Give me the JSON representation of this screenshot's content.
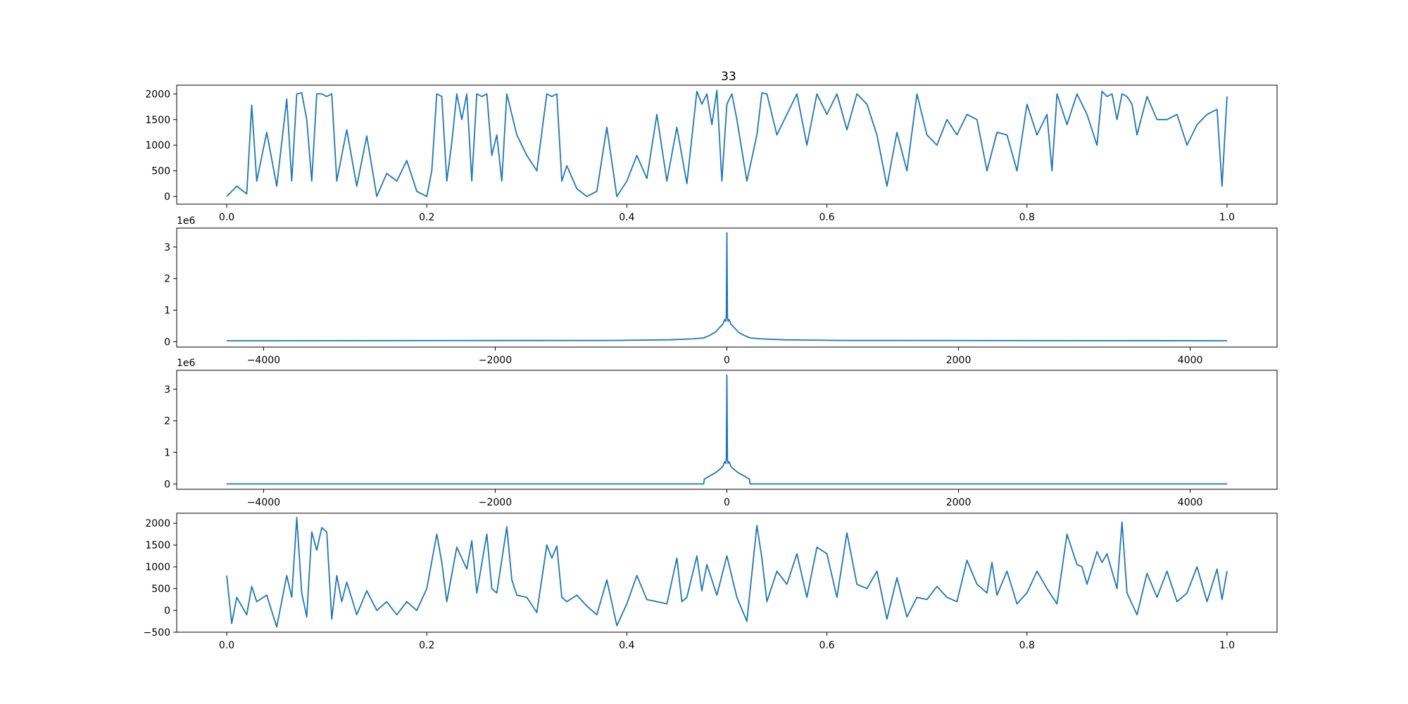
{
  "figure": {
    "title": "33",
    "line_color": "#1f77b4",
    "background": "#ffffff"
  },
  "chart_data": [
    {
      "type": "line",
      "title": "33",
      "xlabel": "",
      "ylabel": "",
      "xlim": [
        -0.05,
        1.05
      ],
      "ylim": [
        -150,
        2170
      ],
      "xticks": [
        0.0,
        0.2,
        0.4,
        0.6,
        0.8,
        1.0
      ],
      "xtick_labels": [
        "0.0",
        "0.2",
        "0.4",
        "0.6",
        "0.8",
        "1.0"
      ],
      "yticks": [
        0,
        500,
        1000,
        1500,
        2000
      ],
      "ytick_labels": [
        "0",
        "500",
        "1000",
        "1500",
        "2000"
      ],
      "offset_label": "",
      "grid": false,
      "series": [
        {
          "x": [
            0.0,
            0.01,
            0.02,
            0.025,
            0.03,
            0.04,
            0.05,
            0.06,
            0.065,
            0.07,
            0.075,
            0.08,
            0.085,
            0.09,
            0.095,
            0.1,
            0.105,
            0.11,
            0.12,
            0.13,
            0.14,
            0.15,
            0.16,
            0.17,
            0.18,
            0.19,
            0.2,
            0.205,
            0.21,
            0.215,
            0.22,
            0.225,
            0.23,
            0.235,
            0.24,
            0.245,
            0.25,
            0.255,
            0.26,
            0.265,
            0.27,
            0.275,
            0.28,
            0.29,
            0.3,
            0.31,
            0.32,
            0.325,
            0.33,
            0.335,
            0.34,
            0.35,
            0.36,
            0.37,
            0.38,
            0.39,
            0.4,
            0.41,
            0.42,
            0.43,
            0.44,
            0.45,
            0.46,
            0.47,
            0.475,
            0.48,
            0.485,
            0.49,
            0.495,
            0.5,
            0.505,
            0.51,
            0.52,
            0.53,
            0.535,
            0.54,
            0.55,
            0.56,
            0.57,
            0.58,
            0.59,
            0.6,
            0.61,
            0.62,
            0.63,
            0.64,
            0.65,
            0.66,
            0.67,
            0.68,
            0.69,
            0.7,
            0.71,
            0.72,
            0.73,
            0.74,
            0.75,
            0.76,
            0.77,
            0.78,
            0.79,
            0.8,
            0.81,
            0.82,
            0.825,
            0.83,
            0.84,
            0.85,
            0.86,
            0.87,
            0.875,
            0.88,
            0.885,
            0.89,
            0.895,
            0.9,
            0.905,
            0.91,
            0.92,
            0.93,
            0.94,
            0.95,
            0.96,
            0.97,
            0.98,
            0.99,
            0.995,
            1.0
          ],
          "y": [
            0,
            200,
            50,
            1780,
            300,
            1250,
            200,
            1900,
            300,
            2000,
            2020,
            1500,
            300,
            2000,
            2000,
            1950,
            2000,
            300,
            1300,
            200,
            1180,
            0,
            450,
            300,
            700,
            100,
            0,
            500,
            2000,
            1950,
            300,
            1050,
            2000,
            1500,
            2000,
            300,
            2000,
            1950,
            2000,
            800,
            1200,
            300,
            2000,
            1200,
            800,
            500,
            2000,
            1950,
            2000,
            300,
            600,
            150,
            0,
            100,
            1350,
            0,
            300,
            800,
            350,
            1600,
            300,
            1350,
            250,
            2050,
            1800,
            2000,
            1400,
            2070,
            300,
            1800,
            2000,
            1500,
            300,
            1200,
            2020,
            2000,
            1200,
            1600,
            2000,
            1000,
            2000,
            1600,
            2000,
            1300,
            2000,
            1800,
            1200,
            200,
            1250,
            500,
            2000,
            1200,
            1000,
            1500,
            1200,
            1600,
            1500,
            500,
            1250,
            1200,
            500,
            1800,
            1200,
            1600,
            500,
            2000,
            1400,
            2000,
            1600,
            1000,
            2050,
            1950,
            2000,
            1500,
            2000,
            1950,
            1800,
            1200,
            1950,
            1500,
            1500,
            1600,
            1000,
            1400,
            1600,
            1700,
            200,
            1950
          ]
        }
      ]
    },
    {
      "type": "line",
      "title": "",
      "xlabel": "",
      "ylabel": "",
      "xlim": [
        -4750,
        4750
      ],
      "ylim": [
        -0.17,
        3.6
      ],
      "xticks": [
        -4000,
        -2000,
        0,
        2000,
        4000
      ],
      "xtick_labels": [
        "−4000",
        "−2000",
        "0",
        "2000",
        "4000"
      ],
      "yticks": [
        0,
        1,
        2,
        3
      ],
      "ytick_labels": [
        "0",
        "1",
        "2",
        "3"
      ],
      "offset_label": "1e6",
      "grid": false,
      "series": [
        {
          "x": [
            -4320,
            -1000,
            -500,
            -300,
            -200,
            -150,
            -100,
            -75,
            -50,
            -35,
            -20,
            -10,
            -5,
            0,
            5,
            10,
            20,
            35,
            50,
            75,
            100,
            150,
            200,
            300,
            500,
            1000,
            4320
          ],
          "y": [
            0.03,
            0.04,
            0.06,
            0.09,
            0.12,
            0.2,
            0.3,
            0.4,
            0.5,
            0.55,
            0.7,
            0.65,
            0.78,
            3.45,
            0.78,
            0.65,
            0.7,
            0.55,
            0.5,
            0.4,
            0.3,
            0.2,
            0.12,
            0.09,
            0.06,
            0.04,
            0.03
          ]
        }
      ]
    },
    {
      "type": "line",
      "title": "",
      "xlabel": "",
      "ylabel": "",
      "xlim": [
        -4750,
        4750
      ],
      "ylim": [
        -0.17,
        3.6
      ],
      "xticks": [
        -4000,
        -2000,
        0,
        2000,
        4000
      ],
      "xtick_labels": [
        "−4000",
        "−2000",
        "0",
        "2000",
        "4000"
      ],
      "yticks": [
        0,
        1,
        2,
        3
      ],
      "ytick_labels": [
        "0",
        "1",
        "2",
        "3"
      ],
      "offset_label": "1e6",
      "grid": false,
      "series": [
        {
          "x": [
            -4320,
            -200,
            -195,
            -150,
            -100,
            -75,
            -50,
            -35,
            -20,
            -10,
            -5,
            0,
            5,
            10,
            20,
            35,
            50,
            75,
            100,
            150,
            195,
            200,
            4320
          ],
          "y": [
            0.0,
            0.0,
            0.15,
            0.25,
            0.35,
            0.42,
            0.5,
            0.55,
            0.7,
            0.65,
            0.78,
            3.45,
            0.78,
            0.65,
            0.7,
            0.55,
            0.5,
            0.42,
            0.35,
            0.25,
            0.15,
            0.0,
            0.0
          ]
        }
      ]
    },
    {
      "type": "line",
      "title": "",
      "xlabel": "",
      "ylabel": "",
      "xlim": [
        -0.05,
        1.05
      ],
      "ylim": [
        -500,
        2230
      ],
      "xticks": [
        0.0,
        0.2,
        0.4,
        0.6,
        0.8,
        1.0
      ],
      "xtick_labels": [
        "0.0",
        "0.2",
        "0.4",
        "0.6",
        "0.8",
        "1.0"
      ],
      "yticks": [
        -500,
        0,
        500,
        1000,
        1500,
        2000
      ],
      "ytick_labels": [
        "−500",
        "0",
        "500",
        "1000",
        "1500",
        "2000"
      ],
      "offset_label": "",
      "grid": false,
      "series": [
        {
          "x": [
            0.0,
            0.005,
            0.01,
            0.02,
            0.025,
            0.03,
            0.04,
            0.05,
            0.06,
            0.065,
            0.07,
            0.075,
            0.08,
            0.085,
            0.09,
            0.095,
            0.1,
            0.105,
            0.11,
            0.115,
            0.12,
            0.13,
            0.14,
            0.15,
            0.16,
            0.17,
            0.18,
            0.19,
            0.2,
            0.21,
            0.215,
            0.22,
            0.23,
            0.24,
            0.245,
            0.25,
            0.26,
            0.265,
            0.27,
            0.28,
            0.285,
            0.29,
            0.3,
            0.31,
            0.32,
            0.325,
            0.33,
            0.335,
            0.34,
            0.35,
            0.36,
            0.37,
            0.38,
            0.39,
            0.4,
            0.41,
            0.42,
            0.43,
            0.44,
            0.45,
            0.455,
            0.46,
            0.47,
            0.475,
            0.48,
            0.49,
            0.5,
            0.51,
            0.52,
            0.53,
            0.535,
            0.54,
            0.55,
            0.56,
            0.57,
            0.58,
            0.59,
            0.6,
            0.61,
            0.62,
            0.63,
            0.64,
            0.65,
            0.66,
            0.67,
            0.68,
            0.69,
            0.7,
            0.71,
            0.72,
            0.73,
            0.74,
            0.75,
            0.76,
            0.765,
            0.77,
            0.78,
            0.79,
            0.8,
            0.81,
            0.82,
            0.83,
            0.84,
            0.85,
            0.855,
            0.86,
            0.87,
            0.875,
            0.88,
            0.89,
            0.895,
            0.9,
            0.91,
            0.92,
            0.93,
            0.94,
            0.95,
            0.96,
            0.97,
            0.98,
            0.99,
            0.995,
            1.0
          ],
          "y": [
            800,
            -300,
            300,
            -100,
            550,
            200,
            350,
            -380,
            800,
            300,
            2130,
            400,
            -150,
            1800,
            1380,
            1900,
            1800,
            -200,
            800,
            200,
            650,
            -100,
            450,
            0,
            200,
            -100,
            200,
            0,
            500,
            1750,
            1100,
            200,
            1450,
            950,
            1600,
            400,
            1750,
            500,
            400,
            1920,
            700,
            350,
            300,
            -50,
            1500,
            1200,
            1480,
            300,
            200,
            350,
            100,
            -100,
            700,
            -350,
            150,
            800,
            250,
            200,
            150,
            1200,
            200,
            300,
            1250,
            450,
            1050,
            350,
            1250,
            300,
            -250,
            1950,
            1200,
            200,
            900,
            600,
            1300,
            300,
            1450,
            1300,
            300,
            1780,
            600,
            500,
            900,
            -200,
            750,
            -150,
            300,
            250,
            550,
            300,
            200,
            1150,
            600,
            400,
            1100,
            350,
            900,
            150,
            400,
            900,
            500,
            150,
            1750,
            1050,
            1000,
            600,
            1350,
            1100,
            1300,
            500,
            2030,
            400,
            -100,
            850,
            300,
            900,
            200,
            400,
            1000,
            200,
            950,
            250,
            900
          ]
        }
      ]
    }
  ]
}
